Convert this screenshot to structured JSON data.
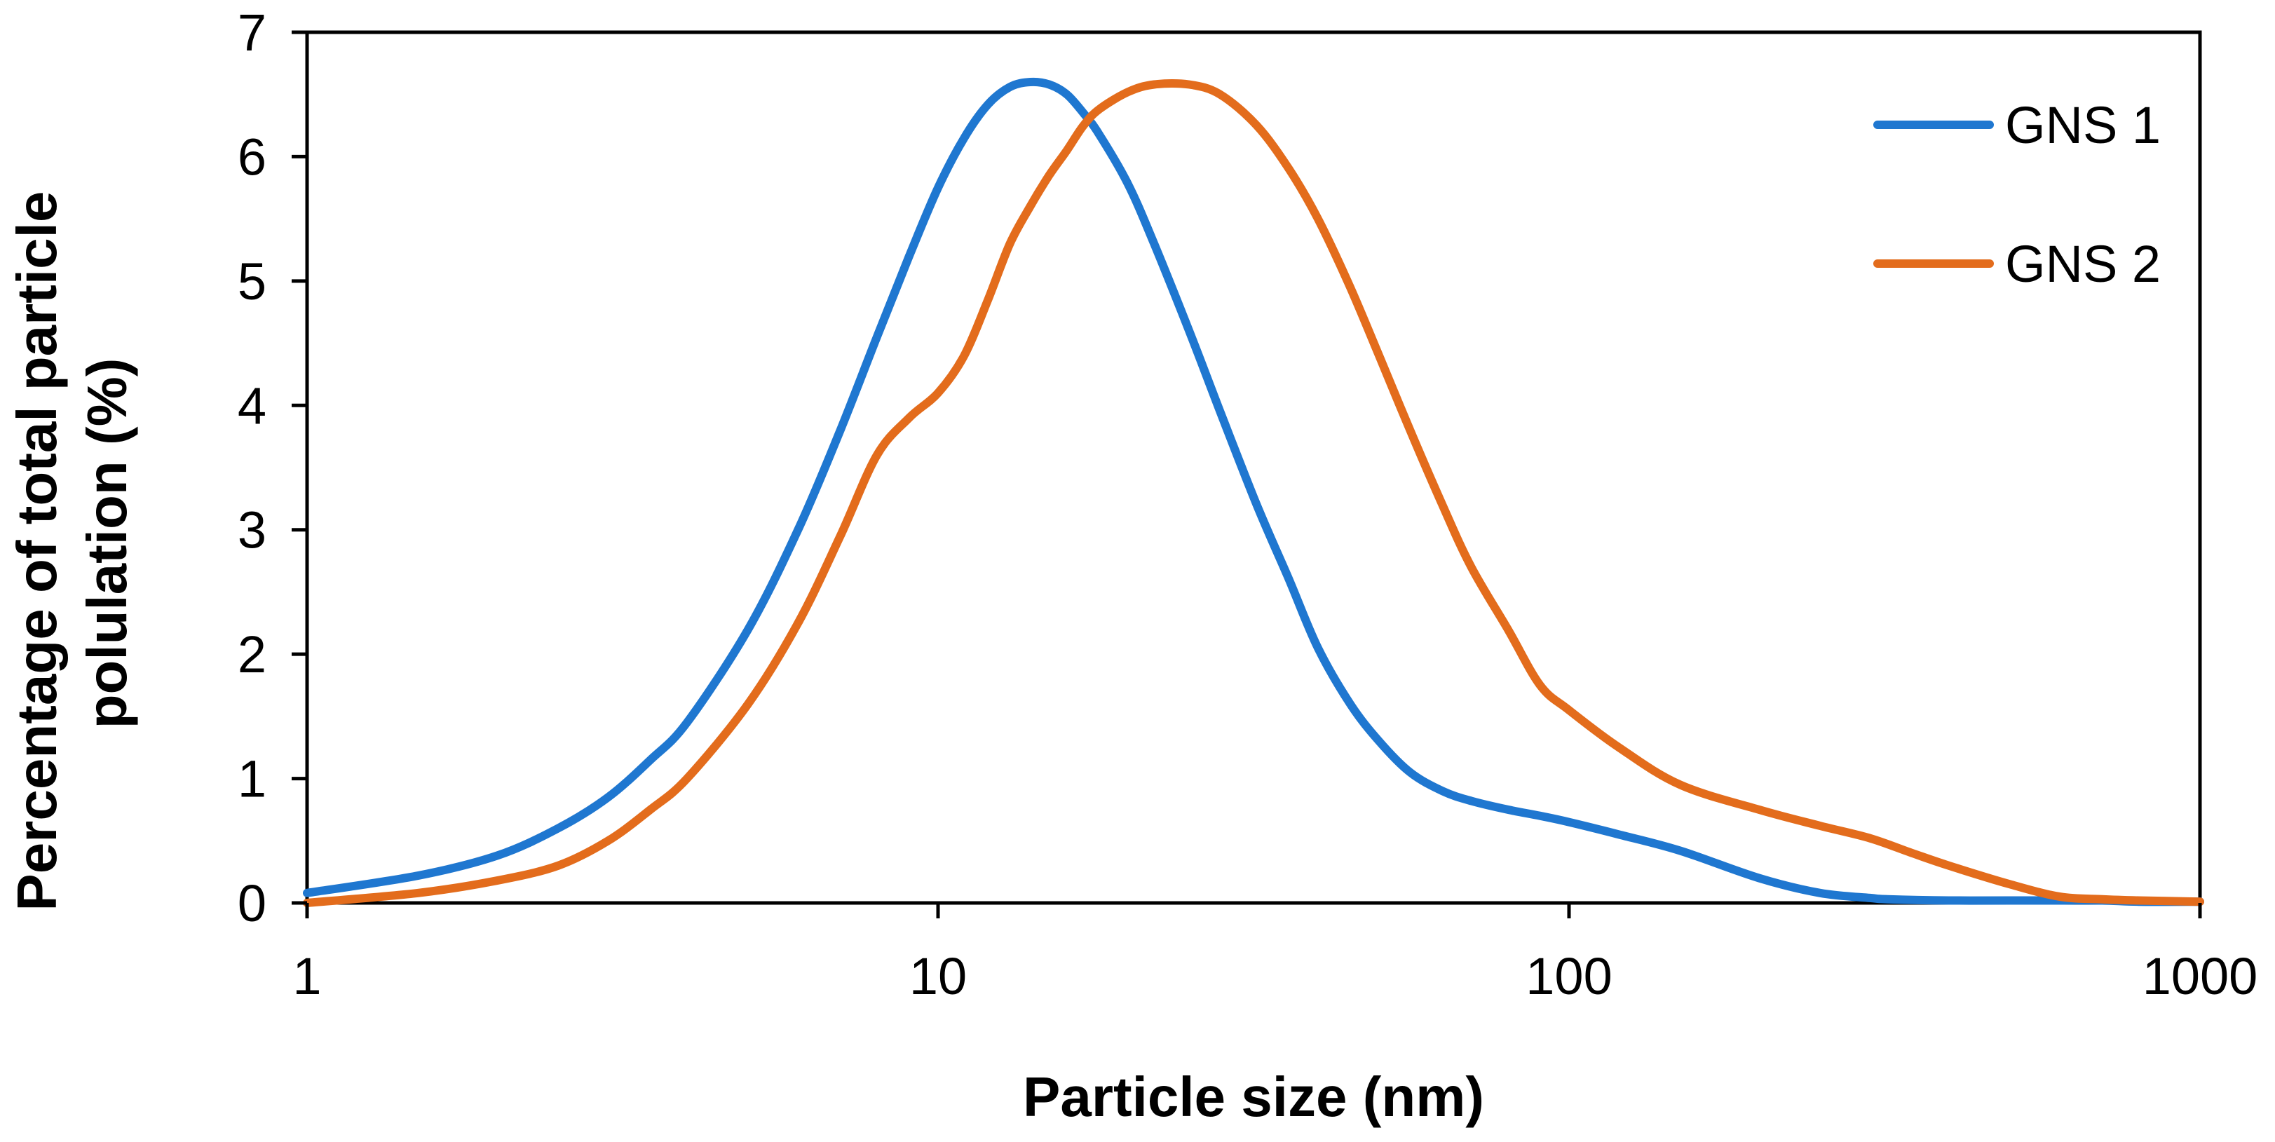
{
  "chart_data": {
    "type": "line",
    "xscale": "log",
    "xlabel": "Particle size (nm)",
    "ylabel_lines": [
      "Percentage of total particle",
      "polulation (%)"
    ],
    "xlim": [
      1,
      1000
    ],
    "ylim": [
      0,
      7
    ],
    "xticks": [
      1,
      10,
      100,
      1000
    ],
    "xtick_labels": [
      "1",
      "10",
      "100",
      "1000"
    ],
    "yticks": [
      0,
      1,
      2,
      3,
      4,
      5,
      6,
      7
    ],
    "ytick_labels": [
      "0",
      "1",
      "2",
      "3",
      "4",
      "5",
      "6",
      "7"
    ],
    "grid": false,
    "legend_position": "top-right",
    "series": [
      {
        "name": "GNS 1",
        "color": "#1f77d0",
        "x": [
          1,
          1.5,
          2,
          2.5,
          3,
          3.5,
          4,
          5,
          6,
          7,
          8,
          9,
          10,
          11,
          12,
          13,
          14,
          15,
          16,
          17,
          18,
          20,
          22,
          25,
          28,
          32,
          36,
          40,
          45,
          50,
          56,
          63,
          70,
          80,
          90,
          100,
          120,
          150,
          200,
          250,
          300,
          320,
          400,
          500,
          600,
          700,
          800,
          1000
        ],
        "y": [
          0.08,
          0.22,
          0.38,
          0.6,
          0.85,
          1.15,
          1.45,
          2.2,
          3.0,
          3.8,
          4.55,
          5.2,
          5.75,
          6.15,
          6.42,
          6.56,
          6.6,
          6.58,
          6.5,
          6.35,
          6.18,
          5.78,
          5.3,
          4.6,
          3.95,
          3.2,
          2.6,
          2.05,
          1.6,
          1.3,
          1.05,
          0.9,
          0.82,
          0.75,
          0.7,
          0.65,
          0.55,
          0.42,
          0.2,
          0.08,
          0.04,
          0.03,
          0.02,
          0.02,
          0.02,
          0.02,
          0.01,
          0.01
        ]
      },
      {
        "name": "GNS 2",
        "color": "#e36c1c",
        "x": [
          1,
          1.5,
          2,
          2.5,
          3,
          3.5,
          4,
          5,
          6,
          7,
          8,
          9,
          10,
          11,
          12,
          13,
          14,
          15,
          16,
          17,
          18,
          20,
          22,
          25,
          28,
          32,
          36,
          40,
          45,
          50,
          56,
          63,
          70,
          80,
          90,
          100,
          120,
          150,
          200,
          250,
          300,
          350,
          400,
          500,
          600,
          700,
          800,
          1000
        ],
        "y": [
          0.0,
          0.08,
          0.18,
          0.3,
          0.5,
          0.75,
          1.0,
          1.6,
          2.25,
          2.95,
          3.6,
          3.9,
          4.1,
          4.4,
          4.85,
          5.3,
          5.6,
          5.85,
          6.05,
          6.25,
          6.38,
          6.52,
          6.58,
          6.58,
          6.5,
          6.25,
          5.9,
          5.5,
          4.95,
          4.4,
          3.8,
          3.2,
          2.7,
          2.2,
          1.75,
          1.55,
          1.25,
          0.95,
          0.75,
          0.62,
          0.52,
          0.4,
          0.3,
          0.15,
          0.05,
          0.03,
          0.02,
          0.01
        ]
      }
    ]
  }
}
